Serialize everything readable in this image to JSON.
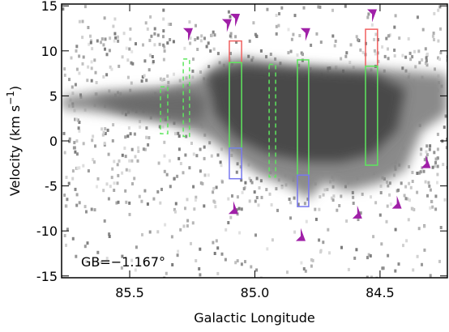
{
  "chart_data": {
    "type": "position-velocity",
    "xlabel": "Galactic Longitude",
    "ylabel": [
      "Velocity (km s",
      "−1",
      ")"
    ],
    "annotation": "GB=−1.167°",
    "xlim": [
      85.772,
      84.231
    ],
    "ylim": [
      -15.2,
      15.2
    ],
    "xticks": [
      85.5,
      {
        "value": 85,
        "label": "85.0"
      },
      84.5
    ],
    "yticks": [
      -15,
      -10,
      -5,
      0,
      5,
      10,
      15
    ],
    "boxes": [
      {
        "x": [
          85.377,
          85.348
        ],
        "y": [
          0.8,
          6.0
        ],
        "color": "#5ee65e",
        "dashed": true
      },
      {
        "x": [
          85.286,
          85.261
        ],
        "y": [
          0.5,
          9.1
        ],
        "color": "#5ee65e",
        "dashed": true
      },
      {
        "x": [
          85.102,
          85.053
        ],
        "y": [
          8.7,
          11.1
        ],
        "color": "#f06060",
        "dashed": false
      },
      {
        "x": [
          85.102,
          85.053
        ],
        "y": [
          -0.8,
          8.7
        ],
        "color": "#5ee65e",
        "dashed": false
      },
      {
        "x": [
          85.102,
          85.053
        ],
        "y": [
          -4.2,
          -0.8
        ],
        "color": "#7878f0",
        "dashed": false
      },
      {
        "x": [
          84.943,
          84.917
        ],
        "y": [
          -4.0,
          8.5
        ],
        "color": "#5ee65e",
        "dashed": true
      },
      {
        "x": [
          84.83,
          84.785
        ],
        "y": [
          -3.8,
          9.0
        ],
        "color": "#5ee65e",
        "dashed": false
      },
      {
        "x": [
          84.83,
          84.785
        ],
        "y": [
          -7.3,
          -3.8
        ],
        "color": "#7878f0",
        "dashed": false
      },
      {
        "x": [
          84.558,
          84.51
        ],
        "y": [
          8.3,
          12.4
        ],
        "color": "#f06060",
        "dashed": false
      },
      {
        "x": [
          84.558,
          84.51
        ],
        "y": [
          -2.7,
          8.3
        ],
        "color": "#5ee65e",
        "dashed": false
      }
    ],
    "arrows": {
      "color": "#a020a8",
      "x": [
        85.267,
        85.112,
        85.079,
        84.798,
        84.532,
        85.086,
        84.817,
        84.591,
        84.433,
        84.317
      ],
      "y": [
        11.8,
        12.8,
        13.4,
        11.8,
        13.9,
        -7.4,
        -10.4,
        -7.9,
        -6.8,
        -2.3
      ],
      "direction": [
        "down",
        "down",
        "down",
        "down",
        "down",
        "up",
        "up",
        "up",
        "up",
        "up"
      ]
    }
  }
}
